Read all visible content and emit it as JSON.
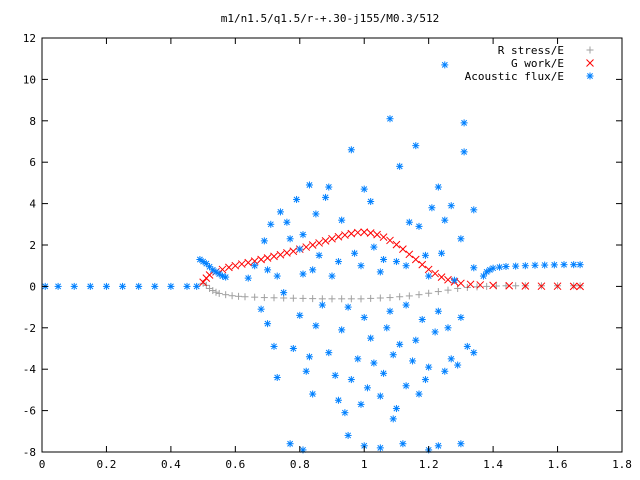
{
  "chart_data": {
    "type": "scatter",
    "title": "m1/n1.5/q1.5/r-+.30-j155/M0.3/512",
    "xlabel": "",
    "ylabel": "",
    "xlim": [
      0,
      1.8
    ],
    "ylim": [
      -8,
      12
    ],
    "x_ticks": [
      "0",
      "0.2",
      "0.4",
      "0.6",
      "0.8",
      "1",
      "1.2",
      "1.4",
      "1.6",
      "1.8"
    ],
    "y_ticks": [
      "-8",
      "-6",
      "-4",
      "-2",
      "0",
      "2",
      "4",
      "6",
      "8",
      "10",
      "12"
    ],
    "legend_position": "top-right",
    "series": [
      {
        "name": "R stress/E",
        "color": "#a0a0a0",
        "marker": "plus",
        "points": [
          [
            0.5,
            0.15
          ],
          [
            0.51,
            0.05
          ],
          [
            0.52,
            -0.1
          ],
          [
            0.53,
            -0.2
          ],
          [
            0.54,
            -0.28
          ],
          [
            0.55,
            -0.34
          ],
          [
            0.57,
            -0.4
          ],
          [
            0.59,
            -0.45
          ],
          [
            0.61,
            -0.48
          ],
          [
            0.63,
            -0.5
          ],
          [
            0.66,
            -0.52
          ],
          [
            0.69,
            -0.54
          ],
          [
            0.72,
            -0.55
          ],
          [
            0.75,
            -0.56
          ],
          [
            0.78,
            -0.57
          ],
          [
            0.81,
            -0.58
          ],
          [
            0.84,
            -0.59
          ],
          [
            0.87,
            -0.6
          ],
          [
            0.9,
            -0.6
          ],
          [
            0.93,
            -0.6
          ],
          [
            0.96,
            -0.6
          ],
          [
            0.99,
            -0.6
          ],
          [
            1.02,
            -0.58
          ],
          [
            1.05,
            -0.56
          ],
          [
            1.08,
            -0.54
          ],
          [
            1.11,
            -0.5
          ],
          [
            1.14,
            -0.46
          ],
          [
            1.17,
            -0.4
          ],
          [
            1.2,
            -0.33
          ],
          [
            1.23,
            -0.25
          ],
          [
            1.26,
            -0.18
          ],
          [
            1.29,
            -0.1
          ],
          [
            1.32,
            -0.05
          ],
          [
            1.35,
            -0.02
          ],
          [
            1.38,
            0
          ],
          [
            1.41,
            0.02
          ],
          [
            1.44,
            0.03
          ],
          [
            1.47,
            0.03
          ],
          [
            1.5,
            0.03
          ],
          [
            1.55,
            0.03
          ],
          [
            1.6,
            0.03
          ],
          [
            1.65,
            0.03
          ],
          [
            1.67,
            0.03
          ]
        ]
      },
      {
        "name": "G work/E",
        "color": "#ff0000",
        "marker": "cross",
        "points": [
          [
            0.5,
            0.2
          ],
          [
            0.51,
            0.4
          ],
          [
            0.52,
            0.55
          ],
          [
            0.54,
            0.7
          ],
          [
            0.56,
            0.82
          ],
          [
            0.58,
            0.92
          ],
          [
            0.6,
            1.0
          ],
          [
            0.62,
            1.08
          ],
          [
            0.64,
            1.15
          ],
          [
            0.66,
            1.22
          ],
          [
            0.68,
            1.3
          ],
          [
            0.7,
            1.37
          ],
          [
            0.72,
            1.45
          ],
          [
            0.74,
            1.53
          ],
          [
            0.76,
            1.62
          ],
          [
            0.78,
            1.7
          ],
          [
            0.8,
            1.8
          ],
          [
            0.82,
            1.9
          ],
          [
            0.84,
            2.0
          ],
          [
            0.86,
            2.1
          ],
          [
            0.88,
            2.2
          ],
          [
            0.9,
            2.3
          ],
          [
            0.92,
            2.4
          ],
          [
            0.94,
            2.48
          ],
          [
            0.96,
            2.55
          ],
          [
            0.98,
            2.6
          ],
          [
            1.0,
            2.62
          ],
          [
            1.02,
            2.58
          ],
          [
            1.04,
            2.5
          ],
          [
            1.06,
            2.38
          ],
          [
            1.08,
            2.22
          ],
          [
            1.1,
            2.02
          ],
          [
            1.12,
            1.8
          ],
          [
            1.14,
            1.55
          ],
          [
            1.16,
            1.3
          ],
          [
            1.18,
            1.05
          ],
          [
            1.2,
            0.82
          ],
          [
            1.22,
            0.62
          ],
          [
            1.24,
            0.45
          ],
          [
            1.26,
            0.32
          ],
          [
            1.28,
            0.22
          ],
          [
            1.3,
            0.15
          ],
          [
            1.33,
            0.1
          ],
          [
            1.36,
            0.07
          ],
          [
            1.4,
            0.05
          ],
          [
            1.45,
            0.03
          ],
          [
            1.5,
            0.02
          ],
          [
            1.55,
            0.01
          ],
          [
            1.6,
            0.01
          ],
          [
            1.65,
            0
          ],
          [
            1.67,
            0
          ]
        ]
      },
      {
        "name": "Acoustic flux/E",
        "color": "#0080ff",
        "marker": "star",
        "points": [
          [
            0.01,
            0
          ],
          [
            0.05,
            0
          ],
          [
            0.1,
            0
          ],
          [
            0.15,
            0
          ],
          [
            0.2,
            0
          ],
          [
            0.25,
            0
          ],
          [
            0.3,
            0
          ],
          [
            0.35,
            0
          ],
          [
            0.4,
            0
          ],
          [
            0.45,
            0
          ],
          [
            0.48,
            0
          ],
          [
            0.49,
            1.3
          ],
          [
            0.5,
            1.2
          ],
          [
            0.51,
            1.1
          ],
          [
            0.52,
            0.95
          ],
          [
            0.53,
            0.8
          ],
          [
            0.54,
            0.7
          ],
          [
            0.55,
            0.6
          ],
          [
            0.56,
            0.5
          ],
          [
            0.57,
            0.45
          ],
          [
            1.37,
            0.5
          ],
          [
            1.38,
            0.7
          ],
          [
            1.39,
            0.8
          ],
          [
            1.4,
            0.88
          ],
          [
            1.42,
            0.93
          ],
          [
            1.44,
            0.96
          ],
          [
            1.47,
            0.98
          ],
          [
            1.5,
            1.0
          ],
          [
            1.53,
            1.02
          ],
          [
            1.56,
            1.03
          ],
          [
            1.59,
            1.04
          ],
          [
            1.62,
            1.05
          ],
          [
            1.65,
            1.05
          ],
          [
            1.67,
            1.05
          ],
          [
            1.25,
            10.7
          ],
          [
            1.08,
            8.1
          ],
          [
            1.31,
            7.9
          ],
          [
            1.16,
            6.8
          ],
          [
            0.96,
            6.6
          ],
          [
            1.11,
            5.8
          ],
          [
            1.31,
            6.5
          ],
          [
            0.83,
            4.9
          ],
          [
            0.89,
            4.8
          ],
          [
            1.23,
            4.8
          ],
          [
            0.79,
            4.2
          ],
          [
            0.88,
            4.3
          ],
          [
            1.02,
            4.1
          ],
          [
            1.21,
            3.8
          ],
          [
            1.0,
            4.7
          ],
          [
            0.76,
            3.1
          ],
          [
            0.71,
            3.0
          ],
          [
            0.74,
            3.6
          ],
          [
            1.27,
            3.9
          ],
          [
            1.34,
            3.7
          ],
          [
            1.25,
            3.2
          ],
          [
            0.85,
            3.5
          ],
          [
            0.81,
            2.5
          ],
          [
            0.93,
            3.2
          ],
          [
            1.17,
            2.9
          ],
          [
            1.14,
            3.1
          ],
          [
            1.3,
            2.3
          ],
          [
            0.69,
            2.2
          ],
          [
            0.77,
            2.3
          ],
          [
            0.8,
            1.8
          ],
          [
            0.86,
            1.5
          ],
          [
            0.92,
            1.2
          ],
          [
            0.97,
            1.6
          ],
          [
            1.03,
            1.9
          ],
          [
            1.06,
            1.3
          ],
          [
            1.1,
            1.2
          ],
          [
            1.13,
            1.0
          ],
          [
            1.19,
            1.5
          ],
          [
            1.24,
            1.6
          ],
          [
            0.66,
            1.0
          ],
          [
            0.7,
            0.8
          ],
          [
            0.73,
            0.5
          ],
          [
            0.81,
            0.6
          ],
          [
            0.84,
            0.8
          ],
          [
            0.9,
            0.5
          ],
          [
            0.99,
            1.0
          ],
          [
            1.05,
            0.7
          ],
          [
            1.2,
            0.5
          ],
          [
            1.28,
            0.3
          ],
          [
            1.34,
            0.9
          ],
          [
            0.64,
            0.4
          ],
          [
            0.75,
            -0.3
          ],
          [
            0.87,
            -0.9
          ],
          [
            0.95,
            -1.0
          ],
          [
            1.0,
            -1.5
          ],
          [
            1.08,
            -1.2
          ],
          [
            1.13,
            -0.9
          ],
          [
            1.18,
            -1.6
          ],
          [
            1.23,
            -1.2
          ],
          [
            1.3,
            -1.5
          ],
          [
            0.68,
            -1.1
          ],
          [
            0.7,
            -1.8
          ],
          [
            0.8,
            -1.4
          ],
          [
            0.85,
            -1.9
          ],
          [
            0.93,
            -2.1
          ],
          [
            1.02,
            -2.5
          ],
          [
            1.07,
            -2.0
          ],
          [
            1.11,
            -2.8
          ],
          [
            1.16,
            -2.6
          ],
          [
            1.22,
            -2.2
          ],
          [
            1.26,
            -2.0
          ],
          [
            1.32,
            -2.9
          ],
          [
            0.72,
            -2.9
          ],
          [
            0.78,
            -3.0
          ],
          [
            0.83,
            -3.4
          ],
          [
            0.89,
            -3.2
          ],
          [
            0.98,
            -3.5
          ],
          [
            1.03,
            -3.7
          ],
          [
            1.09,
            -3.3
          ],
          [
            1.15,
            -3.6
          ],
          [
            1.2,
            -3.9
          ],
          [
            1.27,
            -3.5
          ],
          [
            1.34,
            -3.2
          ],
          [
            0.73,
            -4.4
          ],
          [
            0.82,
            -4.1
          ],
          [
            0.91,
            -4.3
          ],
          [
            0.96,
            -4.5
          ],
          [
            1.01,
            -4.9
          ],
          [
            1.06,
            -4.2
          ],
          [
            1.13,
            -4.8
          ],
          [
            1.19,
            -4.5
          ],
          [
            1.25,
            -4.1
          ],
          [
            1.29,
            -3.8
          ],
          [
            0.84,
            -5.2
          ],
          [
            0.92,
            -5.5
          ],
          [
            0.99,
            -5.7
          ],
          [
            1.05,
            -5.3
          ],
          [
            1.1,
            -5.9
          ],
          [
            1.17,
            -5.2
          ],
          [
            0.94,
            -6.1
          ],
          [
            1.09,
            -6.4
          ],
          [
            0.77,
            -7.6
          ],
          [
            0.95,
            -7.2
          ],
          [
            1.0,
            -7.7
          ],
          [
            1.05,
            -7.8
          ],
          [
            1.12,
            -7.6
          ],
          [
            1.2,
            -7.9
          ],
          [
            1.23,
            -7.7
          ],
          [
            0.81,
            -7.9
          ],
          [
            1.3,
            -7.6
          ]
        ]
      }
    ]
  }
}
